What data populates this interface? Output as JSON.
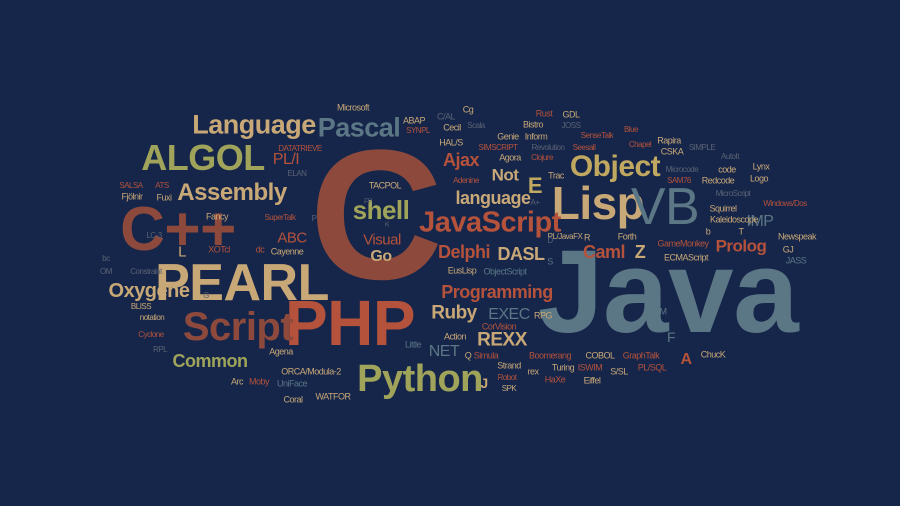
{
  "colors": {
    "background": "#16264a",
    "orange": "#b5523b",
    "tan": "#c9a877",
    "olive": "#9fa45a",
    "slate": "#5b7684",
    "gold": "#c0a860",
    "dim": "#5a6274",
    "rust": "#8d4a3c"
  },
  "words": {
    "java": "Java",
    "c": "C",
    "cpp": "C++",
    "php": "PHP",
    "pearl": "PEARL",
    "script": "Script",
    "python": "Python",
    "lisp": "Lisp",
    "vb": "VB",
    "object": "Object",
    "javascript": "JavaScript",
    "algol": "ALGOL",
    "assembly": "Assembly",
    "language_big": "Language",
    "pascal": "Pascal",
    "shell": "shell",
    "oxygene": "Oxygene",
    "common": "Common",
    "programming": "Programming",
    "language_small": "language",
    "delphi": "Delphi",
    "dasl": "DASL",
    "ajax": "Ajax",
    "not": "Not",
    "e": "E",
    "ruby": "Ruby",
    "rexx": "REXX",
    "exec": "EXEC",
    "net": "NET",
    "camlz": "Caml",
    "z": "Z",
    "prolog": "Prolog",
    "imp": "IMP",
    "visual": "Visual",
    "go": "Go",
    "abc": "ABC",
    "pli": "PL/I",
    "l": "L",
    "a": "A",
    "f": "F",
    "j": "J",
    "fancy": "Fancy",
    "xotcl": "XOTcl",
    "dc": "dc",
    "cayenne": "Cayenne",
    "agena": "Agena",
    "arc": "Arc",
    "moby": "Moby",
    "coral": "Coral",
    "watfor": "WATFOR",
    "orca": "ORCA/Modula-2",
    "uniface": "UniFace",
    "little": "Little",
    "simula": "Simula",
    "action": "Action",
    "corvision": "CorVision",
    "q": "Q",
    "euslisp": "EusLisp",
    "objectscript": "ObjectScript",
    "pljavafx": "PL/JavaFX",
    "rpg": "RPG",
    "strand": "Strand",
    "rex": "rex",
    "turing": "Turing",
    "haxe": "HaXe",
    "eiffel": "Eiffel",
    "ssl": "S/SL",
    "cobol": "COBOL",
    "plsql": "PL/SQL",
    "graphtalk": "GraphTalk",
    "isw": "ISWIM",
    "boomerang": "Boomerang",
    "robot": "Robot",
    "spk": "SPK",
    "chuck": "ChucK",
    "m": "M",
    "gamemonkey": "GameMonkey",
    "ecmascript": "ECMAScript",
    "newspeak": "Newspeak",
    "squirrel": "Squirrel",
    "kaleidoscope": "Kaleidoscope",
    "t": "T",
    "b": "b",
    "gj": "GJ",
    "jass": "JASS",
    "forth": "Forth",
    "r": "R",
    "s": "S",
    "microsoft": "Microsoft",
    "cg": "Cg",
    "rust": "Rust",
    "gdl": "GDL",
    "abap": "ABAP",
    "cal": "C/AL",
    "scala": "Scala",
    "bistro": "Bistro",
    "joss": "JOSS",
    "synpl": "SYNPL",
    "cecil": "Cecil",
    "genie": "Genie",
    "inform": "Inform",
    "sensetalk": "SenseTalk",
    "blue": "Blue",
    "rapira": "Rapira",
    "simscript": "SIMSCRIPT",
    "revolution": "Revolution",
    "seesall": "Seesall",
    "chapel": "Chapel",
    "cska": "CSKA",
    "simple": "SIMPLE",
    "hals": "HAL/S",
    "agora": "Agora",
    "clojure": "Clojure",
    "datatrieve": "DATATRIEVE",
    "elan": "ELAN",
    "autoit": "AutoIt",
    "microcode": "Microcode",
    "code": "code",
    "lynx": "Lynx",
    "sam76": "SAM76",
    "redcode": "Redcode",
    "logo": "Logo",
    "tacpol": "TACPOL",
    "adenine": "Adenine",
    "trac": "Trac",
    "microscript": "MicroScript",
    "windowsdos": "Windows/Dos",
    "salsa": "SALSA",
    "ats": "ATS",
    "fjolnir": "Fjölnir",
    "fuxi": "Fuxi",
    "supertalk": "SuperTalk",
    "lc3": "LC-3",
    "bc": "bc",
    "om": "OM",
    "constraint": "Constraint",
    "bliss": "BLISS",
    "notation": "notation",
    "cyclone": "Cyclone",
    "rpl": "RPL",
    "fp": "FP",
    "k": "K",
    "aplus": "A+",
    "d": "D",
    "g": "G",
    "p": "P"
  }
}
